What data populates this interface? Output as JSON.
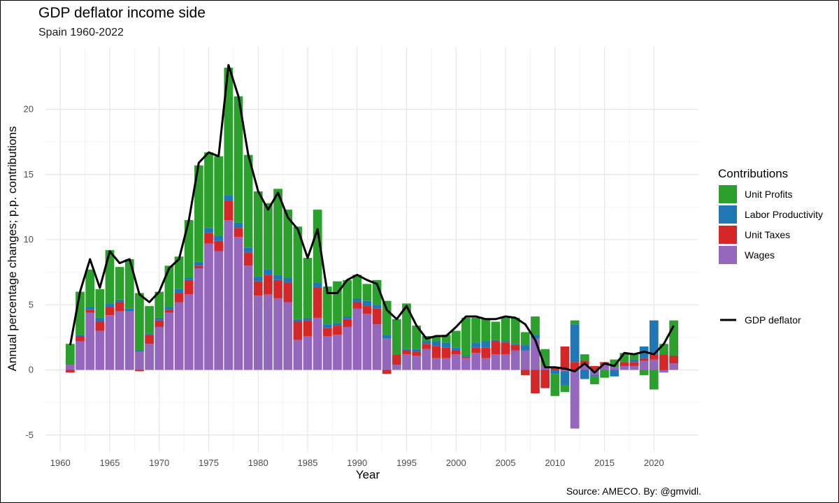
{
  "title": "GDP deflator income side",
  "subtitle": "Spain 1960-2022",
  "caption": "Source: AMECO. By: @gmvidl.",
  "colors": {
    "unit_profits": "#2ca02c",
    "labor_productivity": "#1f77b4",
    "unit_taxes": "#d62728",
    "wages": "#9467bd",
    "gdp_deflator": "#000000"
  },
  "chart_data": {
    "type": "bar",
    "stacked": true,
    "title": "GDP deflator income side",
    "subtitle": "Spain 1960-2022",
    "xlabel": "Year",
    "ylabel": "Annual percentage changes; p.p. contributions",
    "xlim": [
      1958.5,
      2024.5
    ],
    "ylim": [
      -6.3,
      24.8
    ],
    "x_ticks": [
      1960,
      1965,
      1970,
      1975,
      1980,
      1985,
      1990,
      1995,
      2000,
      2005,
      2010,
      2015,
      2020
    ],
    "y_ticks": [
      -5,
      0,
      5,
      10,
      15,
      20
    ],
    "grid": true,
    "legend_title": "Contributions",
    "legend_position": "right",
    "x": [
      1961,
      1962,
      1963,
      1964,
      1965,
      1966,
      1967,
      1968,
      1969,
      1970,
      1971,
      1972,
      1973,
      1974,
      1975,
      1976,
      1977,
      1978,
      1979,
      1980,
      1981,
      1982,
      1983,
      1984,
      1985,
      1986,
      1987,
      1988,
      1989,
      1990,
      1991,
      1992,
      1993,
      1994,
      1995,
      1996,
      1997,
      1998,
      1999,
      2000,
      2001,
      2002,
      2003,
      2004,
      2005,
      2006,
      2007,
      2008,
      2009,
      2010,
      2011,
      2012,
      2013,
      2014,
      2015,
      2016,
      2017,
      2018,
      2019,
      2020,
      2021,
      2022
    ],
    "series": [
      {
        "name": "Wages",
        "key": "wages",
        "kind": "bar",
        "values": [
          0.4,
          2.2,
          4.4,
          3.0,
          4.2,
          4.5,
          4.5,
          1.4,
          2.0,
          3.3,
          4.4,
          5.2,
          5.8,
          7.8,
          9.7,
          9.1,
          11.5,
          10.2,
          8.0,
          5.7,
          5.8,
          5.5,
          5.2,
          2.3,
          2.6,
          4.0,
          2.6,
          2.7,
          3.3,
          4.7,
          4.3,
          3.5,
          2.4,
          0.4,
          1.2,
          1.1,
          1.6,
          0.9,
          0.9,
          1.2,
          0.9,
          1.3,
          0.9,
          1.2,
          1.2,
          1.5,
          1.5,
          2.4,
          0.3,
          0.0,
          -0.1,
          -4.5,
          0.4,
          -0.4,
          0.4,
          0.2,
          0.3,
          0.3,
          0.7,
          0.8,
          -0.2,
          0.5
        ]
      },
      {
        "name": "Unit Taxes",
        "key": "unit_taxes",
        "kind": "bar",
        "values": [
          -0.2,
          0.4,
          0.2,
          0.7,
          0.6,
          0.7,
          0.0,
          -0.1,
          0.7,
          0.5,
          0.2,
          0.7,
          1.1,
          0.2,
          0.8,
          0.8,
          1.5,
          0.7,
          1.0,
          1.1,
          1.5,
          1.4,
          1.5,
          1.4,
          1.2,
          2.3,
          0.6,
          0.7,
          0.6,
          0.5,
          0.6,
          1.2,
          -0.3,
          0.8,
          0.3,
          0.3,
          0.4,
          0.9,
          0.8,
          0.3,
          0.1,
          0.4,
          0.8,
          1.0,
          0.9,
          0.4,
          -0.4,
          -1.8,
          -1.4,
          0.2,
          1.8,
          0.6,
          0.3,
          0.3,
          0.2,
          0.0,
          0.3,
          0.3,
          0.2,
          0.4,
          1.2,
          0.6
        ]
      },
      {
        "name": "Labor Productivity",
        "key": "labor_productivity",
        "kind": "bar",
        "values": [
          0.0,
          0.1,
          0.2,
          0.3,
          0.3,
          0.2,
          0.2,
          0.1,
          0.1,
          0.2,
          0.2,
          0.3,
          0.2,
          0.3,
          0.4,
          0.4,
          0.4,
          0.4,
          0.4,
          0.4,
          0.4,
          0.4,
          0.4,
          0.2,
          0.2,
          0.4,
          0.3,
          0.2,
          0.2,
          0.3,
          0.4,
          0.3,
          0.3,
          0.0,
          0.1,
          0.2,
          0.2,
          0.4,
          0.4,
          0.2,
          0.1,
          0.4,
          0.5,
          0.1,
          0.1,
          0.1,
          0.4,
          0.3,
          0.0,
          -0.3,
          -1.1,
          2.9,
          -0.7,
          -0.1,
          0.0,
          -0.5,
          0.0,
          0.2,
          0.9,
          2.6,
          0.0,
          0.0
        ]
      },
      {
        "name": "Unit Profits",
        "key": "unit_profits",
        "kind": "bar",
        "values": [
          1.6,
          3.3,
          2.9,
          2.2,
          4.1,
          2.5,
          3.8,
          4.4,
          2.1,
          2.0,
          3.2,
          2.5,
          4.4,
          7.4,
          5.8,
          6.1,
          9.8,
          9.7,
          7.1,
          6.5,
          5.1,
          6.6,
          5.2,
          7.1,
          4.6,
          5.6,
          2.9,
          3.2,
          2.8,
          1.8,
          1.3,
          1.9,
          2.6,
          2.7,
          3.5,
          1.8,
          0.4,
          0.4,
          0.6,
          1.3,
          2.9,
          1.9,
          1.7,
          1.4,
          1.8,
          2.0,
          1.0,
          1.4,
          1.3,
          -1.7,
          -0.5,
          0.3,
          0.5,
          -0.6,
          -0.6,
          0.6,
          0.7,
          0.4,
          -0.4,
          -1.5,
          0.8,
          2.7
        ]
      },
      {
        "name": "GDP deflator",
        "key": "gdp_deflator",
        "kind": "line",
        "values": [
          1.9,
          6.0,
          8.5,
          6.3,
          9.1,
          8.2,
          8.5,
          5.8,
          5.2,
          6.0,
          7.8,
          8.5,
          11.5,
          15.9,
          16.7,
          16.4,
          23.4,
          21.0,
          16.5,
          13.7,
          12.3,
          13.6,
          11.7,
          10.8,
          8.6,
          10.8,
          5.9,
          5.9,
          6.9,
          7.3,
          6.9,
          6.6,
          4.6,
          3.9,
          4.9,
          3.4,
          2.4,
          2.6,
          2.6,
          3.3,
          4.1,
          4.1,
          3.9,
          3.9,
          4.1,
          4.0,
          3.5,
          2.3,
          0.2,
          0.2,
          0.1,
          -0.1,
          0.5,
          -0.2,
          0.5,
          0.3,
          1.3,
          1.2,
          1.4,
          1.2,
          2.0,
          3.4
        ]
      }
    ]
  }
}
